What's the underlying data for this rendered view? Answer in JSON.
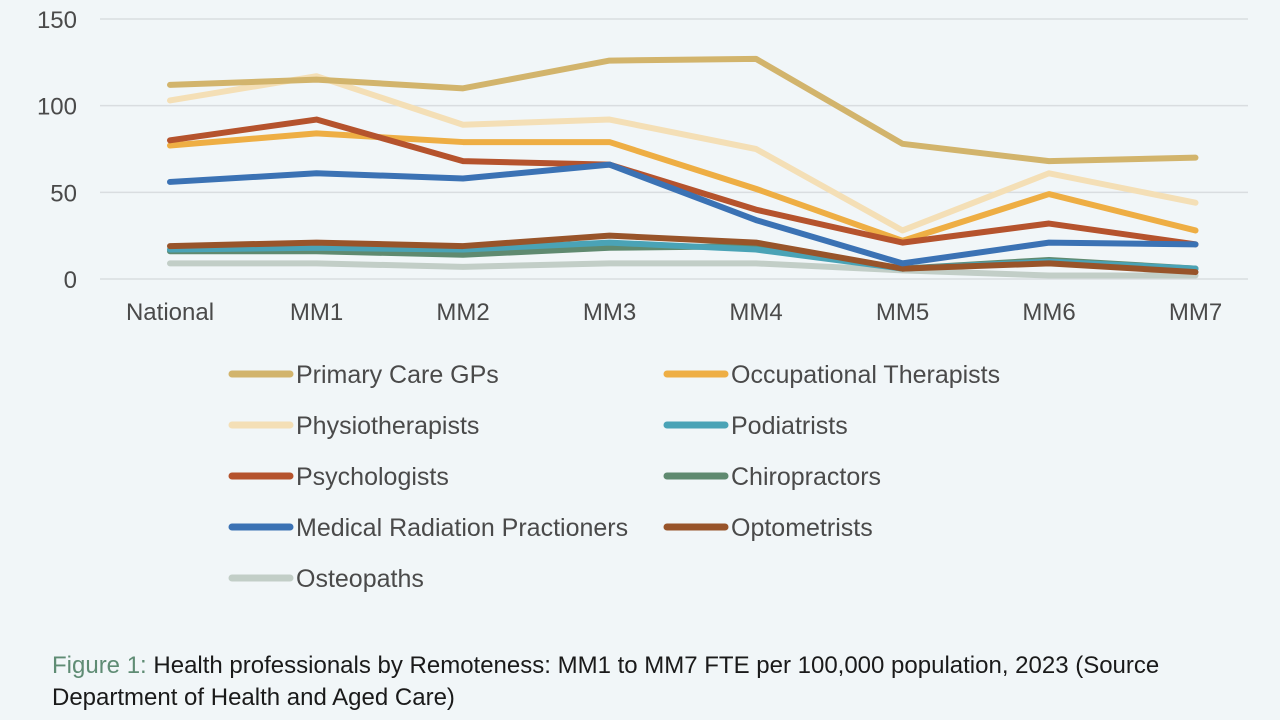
{
  "caption": {
    "label": "Figure 1:",
    "text": " Health professionals by Remoteness: MM1 to MM7 FTE per 100,000 population, 2023 (Source Department of Health and Aged Care)"
  },
  "chart_data": {
    "type": "line",
    "title": "",
    "xlabel": "",
    "ylabel": "",
    "ylim": [
      0,
      150
    ],
    "yticks": [
      0,
      50,
      100,
      150
    ],
    "grid": true,
    "legend_position": "bottom",
    "categories": [
      "National",
      "MM1",
      "MM2",
      "MM3",
      "MM4",
      "MM5",
      "MM6",
      "MM7"
    ],
    "series": [
      {
        "name": "Primary Care GPs",
        "color": "#d2b46c",
        "values": [
          112,
          115,
          110,
          126,
          127,
          78,
          68,
          70
        ]
      },
      {
        "name": "Occupational Therapists",
        "color": "#eeae44",
        "values": [
          77,
          84,
          79,
          79,
          52,
          22,
          49,
          28
        ]
      },
      {
        "name": "Physiotherapists",
        "color": "#f4dfb6",
        "values": [
          103,
          117,
          89,
          92,
          75,
          28,
          61,
          44
        ]
      },
      {
        "name": "Podiatrists",
        "color": "#4aa3b6",
        "values": [
          17,
          18,
          17,
          21,
          17,
          6,
          10,
          6
        ]
      },
      {
        "name": "Psychologists",
        "color": "#b5532d",
        "values": [
          80,
          92,
          68,
          66,
          40,
          21,
          32,
          20
        ]
      },
      {
        "name": "Chiropractors",
        "color": "#5f8a70",
        "values": [
          16,
          16,
          14,
          18,
          19,
          6,
          11,
          6
        ]
      },
      {
        "name": "Medical Radiation Practioners",
        "color": "#3b72b4",
        "values": [
          56,
          61,
          58,
          66,
          34,
          9,
          21,
          20
        ]
      },
      {
        "name": "Optometrists",
        "color": "#98542a",
        "values": [
          19,
          21,
          19,
          25,
          21,
          6,
          9,
          4
        ]
      },
      {
        "name": "Osteopaths",
        "color": "#c2cec7",
        "values": [
          9,
          9,
          7,
          9,
          9,
          5,
          2,
          2
        ]
      }
    ]
  }
}
